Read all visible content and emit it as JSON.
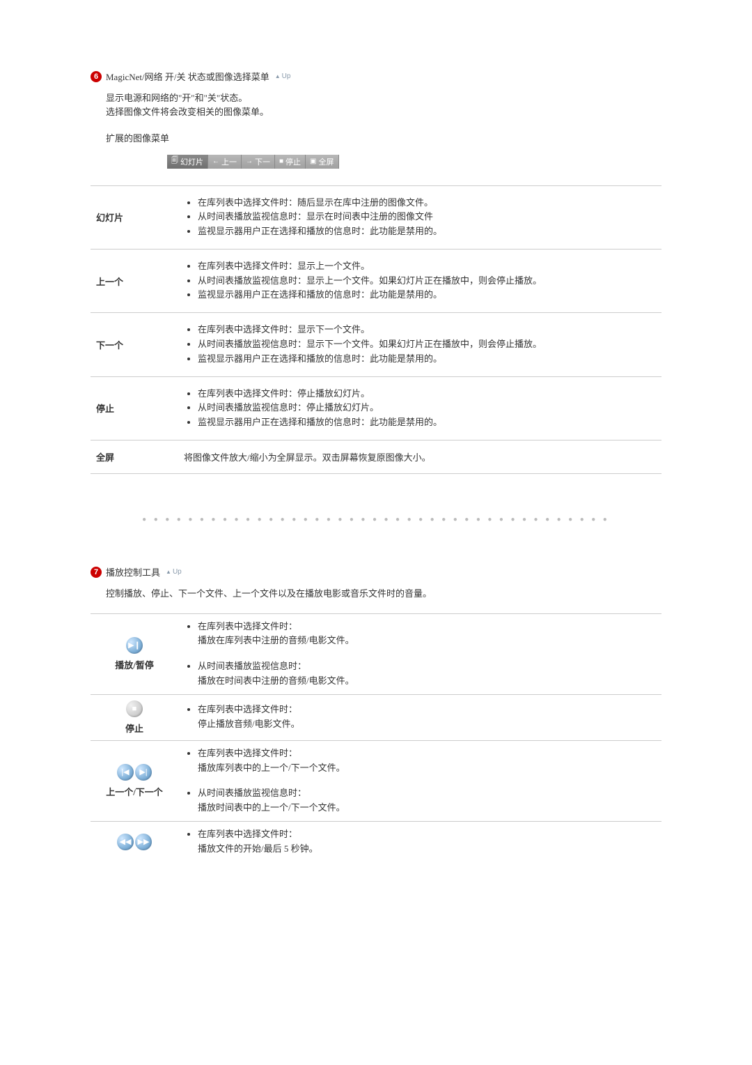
{
  "section6": {
    "number": "6",
    "title": "MagicNet/网络 开/关 状态或图像选择菜单",
    "up": "Up",
    "desc_line1": "显示电源和网络的\"开\"和\"关\"状态。",
    "desc_line2": "选择图像文件将会改变相关的图像菜单。",
    "sub_heading": "扩展的图像菜单",
    "toolbar": {
      "c1": "幻灯片",
      "c2_arrow": "←",
      "c2": "上一",
      "c3_arrow": "→",
      "c3": "下一",
      "c4_icon": "■",
      "c4": "停止",
      "c5_icon": "▣",
      "c5": "全屏"
    },
    "rows": [
      {
        "term": "幻灯片",
        "items": [
          "在库列表中选择文件时：随后显示在库中注册的图像文件。",
          "从时间表播放监视信息时：显示在时间表中注册的图像文件",
          "监视显示器用户正在选择和播放的信息时：此功能是禁用的。"
        ]
      },
      {
        "term": "上一个",
        "items": [
          "在库列表中选择文件时：显示上一个文件。",
          "从时间表播放监视信息时：显示上一个文件。如果幻灯片正在播放中，则会停止播放。",
          "监视显示器用户正在选择和播放的信息时：此功能是禁用的。"
        ]
      },
      {
        "term": "下一个",
        "items": [
          "在库列表中选择文件时：显示下一个文件。",
          "从时间表播放监视信息时：显示下一个文件。如果幻灯片正在播放中，则会停止播放。",
          "监视显示器用户正在选择和播放的信息时：此功能是禁用的。"
        ]
      },
      {
        "term": "停止",
        "items": [
          "在库列表中选择文件时：停止播放幻灯片。",
          "从时间表播放监视信息时：停止播放幻灯片。",
          "监视显示器用户正在选择和播放的信息时：此功能是禁用的。"
        ]
      },
      {
        "term": "全屏",
        "plain": "将图像文件放大/缩小为全屏显示。双击屏幕恢复原图像大小。"
      }
    ]
  },
  "section7": {
    "number": "7",
    "title": "播放控制工具",
    "up": "Up",
    "desc": "控制播放、停止、下一个文件、上一个文件以及在播放电影或音乐文件时的音量。",
    "controls": [
      {
        "label": "播放/暂停",
        "icons": [
          {
            "glyph": "▶❙",
            "cls": ""
          }
        ],
        "blocks": [
          [
            "在库列表中选择文件时：",
            "播放在库列表中注册的音频/电影文件。"
          ],
          [
            "从时间表播放监视信息时：",
            "播放在时间表中注册的音频/电影文件。"
          ]
        ]
      },
      {
        "label": "停止",
        "icons": [
          {
            "glyph": "■",
            "cls": "stop-ic"
          }
        ],
        "blocks": [
          [
            "在库列表中选择文件时：",
            "停止播放音频/电影文件。"
          ]
        ]
      },
      {
        "label": "上一个/下一个",
        "icons": [
          {
            "glyph": "|◀",
            "cls": ""
          },
          {
            "glyph": "▶|",
            "cls": ""
          }
        ],
        "blocks": [
          [
            "在库列表中选择文件时：",
            "播放库列表中的上一个/下一个文件。"
          ],
          [
            "从时间表播放监视信息时：",
            "播放时间表中的上一个/下一个文件。"
          ]
        ]
      },
      {
        "label": "",
        "icons": [
          {
            "glyph": "◀◀",
            "cls": ""
          },
          {
            "glyph": "▶▶",
            "cls": ""
          }
        ],
        "blocks": [
          [
            "在库列表中选择文件时：",
            "播放文件的开始/最后 5 秒钟。"
          ]
        ]
      }
    ]
  }
}
